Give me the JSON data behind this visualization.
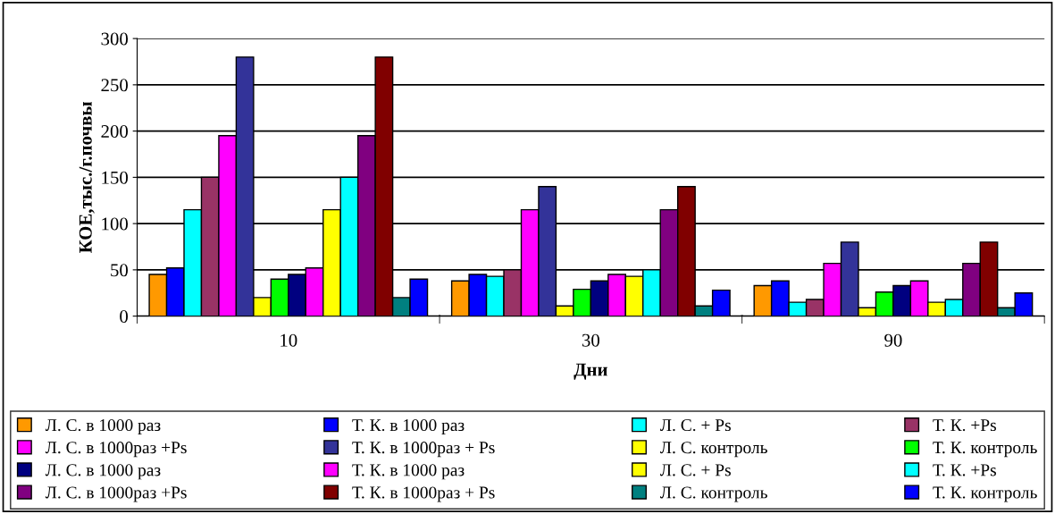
{
  "chart_data": {
    "type": "bar",
    "xlabel": "Дни",
    "ylabel": "КОЕ,тыс./г.почвы",
    "categories": [
      "10",
      "30",
      "90"
    ],
    "ylim": [
      0,
      300
    ],
    "yticks": [
      0,
      50,
      100,
      150,
      200,
      250,
      300
    ],
    "grid": "y",
    "legend": "bottom",
    "series": [
      {
        "name": "Л. С. в 1000 раз",
        "color": "#ff9900",
        "values": [
          45,
          38,
          33
        ]
      },
      {
        "name": "Т. К. в 1000 раз",
        "color": "#0000ff",
        "values": [
          52,
          45,
          38
        ]
      },
      {
        "name": "Л. С. + Ps",
        "color": "#00ffff",
        "values": [
          115,
          43,
          15
        ]
      },
      {
        "name": "Т. К. +Ps",
        "color": "#993366",
        "values": [
          150,
          50,
          18
        ]
      },
      {
        "name": "Л. С. в 1000раз +Ps",
        "color": "#ff00ff",
        "values": [
          195,
          115,
          57
        ]
      },
      {
        "name": "Т. К. в 1000раз + Ps",
        "color": "#333399",
        "values": [
          280,
          140,
          80
        ]
      },
      {
        "name": "Л. С. контроль",
        "color": "#ffff00",
        "values": [
          20,
          11,
          9
        ]
      },
      {
        "name": "Т. К. контроль",
        "color": "#00ff00",
        "values": [
          40,
          29,
          26
        ]
      },
      {
        "name": "Л. С. в 1000 раз",
        "color": "#000080",
        "values": [
          45,
          38,
          33
        ]
      },
      {
        "name": "Т. К. в 1000 раз",
        "color": "#ff00ff",
        "values": [
          52,
          45,
          38
        ]
      },
      {
        "name": "Л. С. + Ps",
        "color": "#ffff00",
        "values": [
          115,
          43,
          15
        ]
      },
      {
        "name": "Т. К. +Ps",
        "color": "#00ffff",
        "values": [
          150,
          50,
          18
        ]
      },
      {
        "name": "Л. С. в 1000раз +Ps",
        "color": "#800080",
        "values": [
          195,
          115,
          57
        ]
      },
      {
        "name": "Т. К. в 1000раз + Ps",
        "color": "#800000",
        "values": [
          280,
          140,
          80
        ]
      },
      {
        "name": "Л. С. контроль",
        "color": "#008080",
        "values": [
          20,
          11,
          9
        ]
      },
      {
        "name": "Т. К. контроль",
        "color": "#0000ff",
        "values": [
          40,
          28,
          25
        ]
      }
    ]
  }
}
